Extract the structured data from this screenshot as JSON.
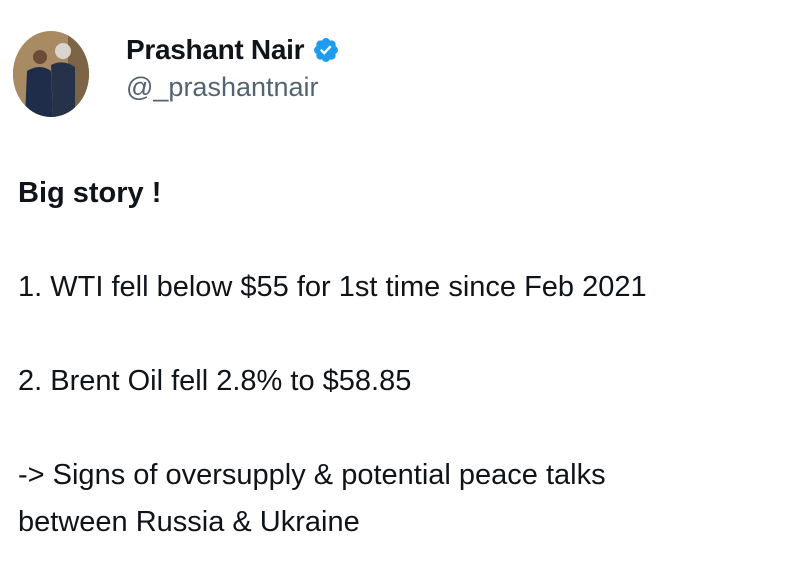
{
  "author": {
    "name": "Prashant Nair",
    "handle": "@_prashantnair",
    "verified": true,
    "badge_color": "#1d9bf0"
  },
  "tweet": {
    "lines": [
      "Big story !",
      "1. WTI fell below $55 for 1st time since Feb 2021",
      "2. Brent Oil fell 2.8% to $58.85",
      "-> Signs of oversupply & potential peace talks",
      "between Russia & Ukraine"
    ]
  }
}
